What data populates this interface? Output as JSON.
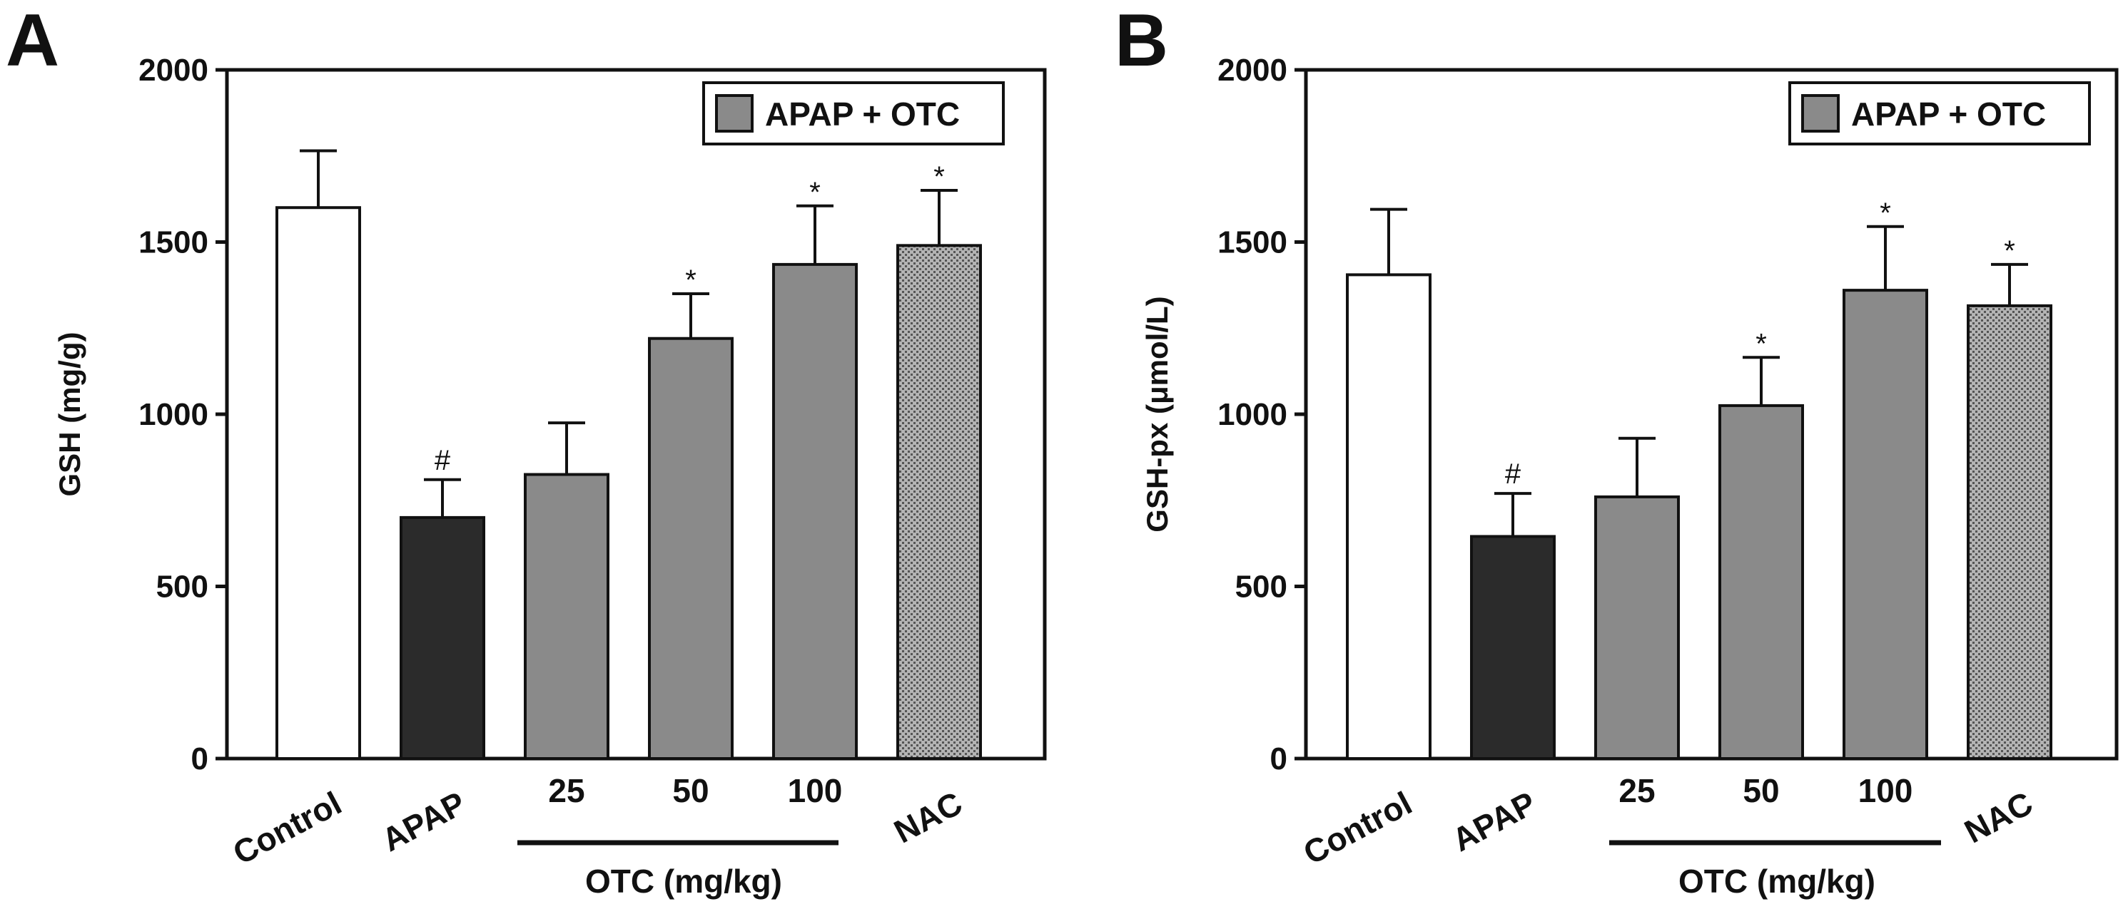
{
  "chart_data": [
    {
      "panel": "A",
      "type": "bar",
      "ylabel": "GSH (mg/g)",
      "ylim": [
        0,
        2000
      ],
      "yticks": [
        0,
        500,
        1000,
        1500,
        2000
      ],
      "categories": [
        "Control",
        "APAP",
        "25",
        "50",
        "100",
        "NAC"
      ],
      "values": [
        1600,
        700,
        825,
        1220,
        1435,
        1490
      ],
      "errors": [
        165,
        110,
        150,
        130,
        170,
        160
      ],
      "fill_colors": [
        "#ffffff",
        "#2b2b2b",
        "#8a8a8a",
        "#8a8a8a",
        "#8a8a8a",
        "#9c9c9c"
      ],
      "patterns": [
        "none",
        "none",
        "none",
        "none",
        "none",
        "dots"
      ],
      "significance": [
        "",
        "#",
        "",
        "*",
        "*",
        "*"
      ],
      "group_label": "OTC (mg/kg)",
      "legend": "APAP + OTC",
      "legend_position": "top-right"
    },
    {
      "panel": "B",
      "type": "bar",
      "ylabel": "GSH-px (μmol/L)",
      "ylim": [
        0,
        2000
      ],
      "yticks": [
        0,
        500,
        1000,
        1500,
        2000
      ],
      "categories": [
        "Control",
        "APAP",
        "25",
        "50",
        "100",
        "NAC"
      ],
      "values": [
        1405,
        645,
        760,
        1025,
        1360,
        1315
      ],
      "errors": [
        190,
        125,
        170,
        140,
        185,
        120
      ],
      "fill_colors": [
        "#ffffff",
        "#2b2b2b",
        "#8a8a8a",
        "#8a8a8a",
        "#8a8a8a",
        "#9c9c9c"
      ],
      "patterns": [
        "none",
        "none",
        "none",
        "none",
        "none",
        "dots"
      ],
      "significance": [
        "",
        "#",
        "",
        "*",
        "*",
        "*"
      ],
      "group_label": "OTC (mg/kg)",
      "legend": "APAP + OTC",
      "legend_position": "top-right"
    }
  ]
}
